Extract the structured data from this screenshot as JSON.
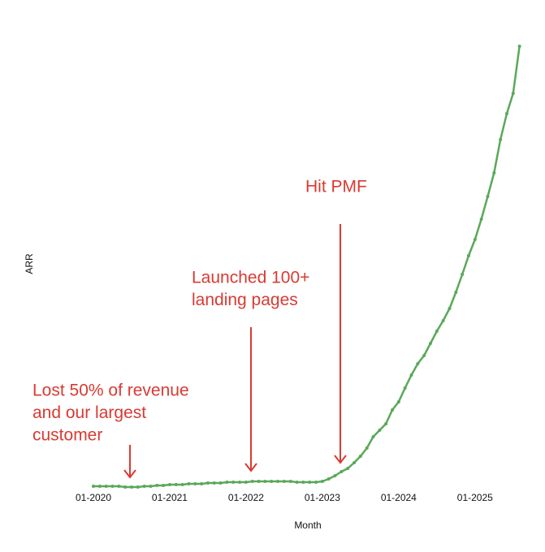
{
  "chart_data": {
    "type": "line",
    "x_label": "Month",
    "y_label": "ARR",
    "categories": [
      "01-2020",
      null,
      null,
      null,
      null,
      null,
      null,
      null,
      null,
      null,
      null,
      null,
      "01-2021",
      null,
      null,
      null,
      null,
      null,
      null,
      null,
      null,
      null,
      null,
      null,
      "01-2022",
      null,
      null,
      null,
      null,
      null,
      null,
      null,
      null,
      null,
      null,
      null,
      "01-2023",
      null,
      null,
      null,
      null,
      null,
      null,
      null,
      null,
      null,
      null,
      null,
      "01-2024",
      null,
      null,
      null,
      null,
      null,
      null,
      null,
      null,
      null,
      null,
      null,
      "01-2025",
      null,
      null,
      null,
      null,
      null,
      null,
      null
    ],
    "series": [
      {
        "name": "ARR",
        "color": "#5aa85a",
        "values": [
          1,
          1,
          1,
          1,
          1,
          0,
          0,
          0,
          1,
          1,
          2,
          2,
          3,
          3,
          3,
          4,
          4,
          4,
          5,
          5,
          5,
          6,
          6,
          6,
          6,
          7,
          7,
          7,
          7,
          7,
          7,
          7,
          6,
          6,
          6,
          6,
          7,
          10,
          14,
          19,
          23,
          30,
          38,
          48,
          62,
          70,
          78,
          95,
          105,
          122,
          138,
          152,
          162,
          177,
          192,
          205,
          220,
          240,
          262,
          285,
          305,
          330,
          358,
          387,
          428,
          460,
          485,
          543
        ]
      }
    ],
    "ylim": [
      0,
      543
    ],
    "annotations": [
      {
        "lines": [
          "Lost 50% of revenue",
          "and our largest",
          "customer"
        ],
        "color": "#d93a33"
      },
      {
        "lines": [
          "Launched 100+",
          "landing pages"
        ],
        "color": "#d93a33"
      },
      {
        "lines": [
          "Hit PMF"
        ],
        "color": "#d93a33"
      }
    ]
  }
}
